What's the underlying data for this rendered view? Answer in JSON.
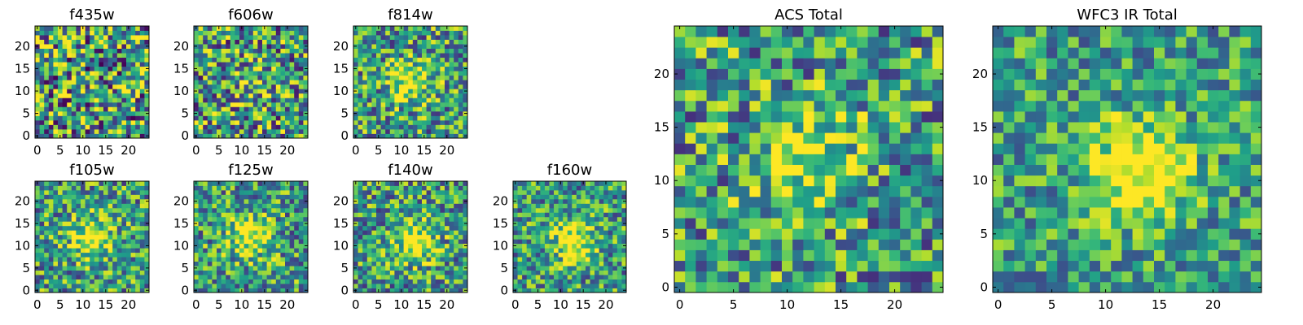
{
  "chart_data": [
    {
      "type": "heatmap",
      "title": "f435w",
      "xticks": [
        "0",
        "5",
        "10",
        "15",
        "20"
      ],
      "yticks": [
        "0",
        "5",
        "10",
        "15",
        "20"
      ],
      "xlim": [
        0,
        25
      ],
      "ylim": [
        0,
        25
      ],
      "colormap": "viridis",
      "peak": null,
      "peak_amplitude": 0.0,
      "noise": 0.55,
      "seed": 11
    },
    {
      "type": "heatmap",
      "title": "f606w",
      "xticks": [
        "0",
        "5",
        "10",
        "15",
        "20"
      ],
      "yticks": [
        "0",
        "5",
        "10",
        "15",
        "20"
      ],
      "xlim": [
        0,
        25
      ],
      "ylim": [
        0,
        25
      ],
      "colormap": "viridis",
      "peak": [
        12,
        12
      ],
      "peak_amplitude": 0.15,
      "noise": 0.5,
      "seed": 23
    },
    {
      "type": "heatmap",
      "title": "f814w",
      "xticks": [
        "0",
        "5",
        "10",
        "15",
        "20"
      ],
      "yticks": [
        "0",
        "5",
        "10",
        "15",
        "20"
      ],
      "xlim": [
        0,
        25
      ],
      "ylim": [
        0,
        25
      ],
      "colormap": "viridis",
      "peak": [
        12,
        12
      ],
      "peak_amplitude": 0.45,
      "noise": 0.42,
      "seed": 37
    },
    {
      "type": "heatmap",
      "title": "f105w",
      "xticks": [
        "0",
        "5",
        "10",
        "15",
        "20"
      ],
      "yticks": [
        "0",
        "5",
        "10",
        "15",
        "20"
      ],
      "xlim": [
        0,
        25
      ],
      "ylim": [
        0,
        25
      ],
      "colormap": "viridis",
      "peak": [
        12,
        12
      ],
      "peak_amplitude": 0.5,
      "noise": 0.4,
      "seed": 41
    },
    {
      "type": "heatmap",
      "title": "f125w",
      "xticks": [
        "0",
        "5",
        "10",
        "15",
        "20"
      ],
      "yticks": [
        "0",
        "5",
        "10",
        "15",
        "20"
      ],
      "xlim": [
        0,
        25
      ],
      "ylim": [
        0,
        25
      ],
      "colormap": "viridis",
      "peak": [
        12,
        12
      ],
      "peak_amplitude": 0.5,
      "noise": 0.4,
      "seed": 53
    },
    {
      "type": "heatmap",
      "title": "f140w",
      "xticks": [
        "0",
        "5",
        "10",
        "15",
        "20"
      ],
      "yticks": [
        "0",
        "5",
        "10",
        "15",
        "20"
      ],
      "xlim": [
        0,
        25
      ],
      "ylim": [
        0,
        25
      ],
      "colormap": "viridis",
      "peak": [
        13,
        11
      ],
      "peak_amplitude": 0.5,
      "noise": 0.4,
      "seed": 67
    },
    {
      "type": "heatmap",
      "title": "f160w",
      "xticks": [
        "0",
        "5",
        "10",
        "15",
        "20"
      ],
      "yticks": [
        "0",
        "5",
        "10",
        "15",
        "20"
      ],
      "xlim": [
        0,
        25
      ],
      "ylim": [
        0,
        25
      ],
      "colormap": "viridis",
      "peak": [
        13,
        11
      ],
      "peak_amplitude": 0.55,
      "noise": 0.38,
      "seed": 71
    },
    {
      "type": "heatmap",
      "title": "ACS Total",
      "xticks": [
        "0",
        "5",
        "10",
        "15",
        "20"
      ],
      "yticks": [
        "0",
        "5",
        "10",
        "15",
        "20"
      ],
      "xlim": [
        0,
        25
      ],
      "ylim": [
        0,
        25
      ],
      "colormap": "viridis",
      "peak": [
        12,
        12
      ],
      "peak_amplitude": 0.45,
      "noise": 0.42,
      "seed": 83
    },
    {
      "type": "heatmap",
      "title": "WFC3 IR Total",
      "xticks": [
        "0",
        "5",
        "10",
        "15",
        "20"
      ],
      "yticks": [
        "0",
        "5",
        "10",
        "15",
        "20"
      ],
      "xlim": [
        0,
        25
      ],
      "ylim": [
        0,
        25
      ],
      "colormap": "viridis",
      "peak": [
        13,
        11
      ],
      "peak_amplitude": 0.6,
      "noise": 0.32,
      "seed": 97
    }
  ]
}
